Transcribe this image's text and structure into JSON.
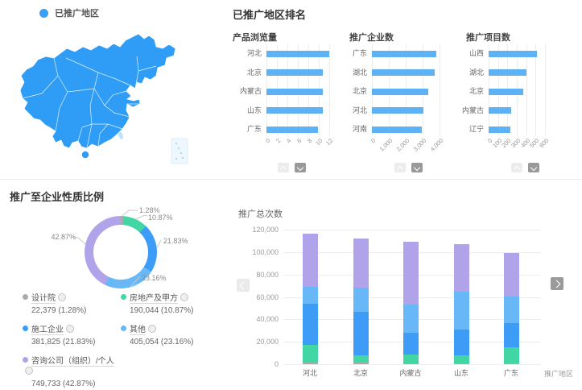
{
  "map_panel": {
    "legend_label": "已推广地区",
    "map_color": "#2f9df5"
  },
  "ranking": {
    "title": "已推广地区排名"
  },
  "pie": {
    "title": "推广至企业性质比例"
  },
  "stack": {
    "title": "推广总次数",
    "xlabel": "推广地区"
  },
  "colors": {
    "bar_blue": "#5db1f5",
    "map_blue": "#2f9df5",
    "gray": "#a7abb0",
    "green": "#41d6a4",
    "blue": "#3d9df6",
    "light_blue": "#68b8f8",
    "purple": "#b1a3e9"
  },
  "chart_data": [
    {
      "type": "map",
      "title": "已推广地区",
      "region": "China",
      "highlight_color": "#2f9df5",
      "insets": [
        "Taiwan",
        "Hainan",
        "South China Sea box"
      ]
    },
    {
      "type": "bar",
      "orientation": "horizontal",
      "title": "产品浏览量",
      "categories": [
        "河北",
        "北京",
        "内蒙古",
        "山东",
        "广东"
      ],
      "values": [
        12,
        10.8,
        10.8,
        10.8,
        9.9
      ],
      "xlim": [
        0,
        12
      ],
      "ticks": [
        "0",
        "2",
        "4",
        "6",
        "8",
        "10",
        "12"
      ],
      "bar_color": "#5db1f5",
      "pager": {
        "up_enabled": false,
        "down_enabled": true
      }
    },
    {
      "type": "bar",
      "orientation": "horizontal",
      "title": "推广企业数",
      "categories": [
        "广东",
        "湖北",
        "北京",
        "河北",
        "河南"
      ],
      "values": [
        3800,
        3720,
        3310,
        3030,
        2950
      ],
      "xlim": [
        0,
        4000
      ],
      "ticks": [
        "0",
        "1,000",
        "2,000",
        "3,000",
        "4,000"
      ],
      "bar_color": "#5db1f5",
      "pager": {
        "up_enabled": false,
        "down_enabled": true
      }
    },
    {
      "type": "bar",
      "orientation": "horizontal",
      "title": "推广项目数",
      "categories": [
        "山西",
        "湖北",
        "北京",
        "内蒙古",
        "辽宁"
      ],
      "values": [
        515,
        400,
        370,
        240,
        235
      ],
      "xlim": [
        0,
        600
      ],
      "ticks": [
        "0",
        "100",
        "200",
        "300",
        "400",
        "500",
        "600"
      ],
      "bar_color": "#5db1f5",
      "pager": {
        "up_enabled": false,
        "down_enabled": true
      }
    },
    {
      "type": "pie",
      "title": "推广至企业性质比例",
      "slices": [
        {
          "name": "设计院",
          "value": 22379,
          "pct": "1.28%",
          "display": "22,379 (1.28%)",
          "color": "#a7abb0"
        },
        {
          "name": "房地产及甲方",
          "value": 190044,
          "pct": "10.87%",
          "display": "190,044 (10.87%)",
          "color": "#41d6a4"
        },
        {
          "name": "施工企业",
          "value": 381825,
          "pct": "21.83%",
          "display": "381,825 (21.83%)",
          "color": "#3d9df6"
        },
        {
          "name": "其他",
          "value": 405054,
          "pct": "23.16%",
          "display": "405,054 (23.16%)",
          "color": "#68b8f8"
        },
        {
          "name": "咨询公司（组织）/个人",
          "value": 749733,
          "pct": "42.87%",
          "display": "749,733 (42.87%)",
          "color": "#b1a3e9"
        }
      ]
    },
    {
      "type": "stacked-bar",
      "title": "推广总次数",
      "xlabel": "推广地区",
      "categories": [
        "河北",
        "北京",
        "内蒙古",
        "山东",
        "广东"
      ],
      "ylim": [
        0,
        120000
      ],
      "yticks": [
        "0",
        "20,000",
        "40,000",
        "60,000",
        "80,000",
        "100,000",
        "120,000"
      ],
      "series": [
        {
          "name": "设计院",
          "color": "#a7abb0",
          "values": [
            1700,
            1700,
            600,
            600,
            600
          ]
        },
        {
          "name": "房地产及甲方",
          "color": "#41d6a4",
          "values": [
            15900,
            6400,
            8100,
            7200,
            14600
          ]
        },
        {
          "name": "施工企业",
          "color": "#3d9df6",
          "values": [
            36600,
            38900,
            19500,
            23300,
            21800
          ]
        },
        {
          "name": "其他",
          "color": "#68b8f8",
          "values": [
            14800,
            21500,
            25300,
            33900,
            23700
          ]
        },
        {
          "name": "咨询公司（组织）/个人",
          "color": "#b1a3e9",
          "values": [
            47400,
            43600,
            55700,
            41800,
            38500
          ]
        }
      ],
      "nav": {
        "left_enabled": false,
        "right_enabled": true
      }
    }
  ]
}
